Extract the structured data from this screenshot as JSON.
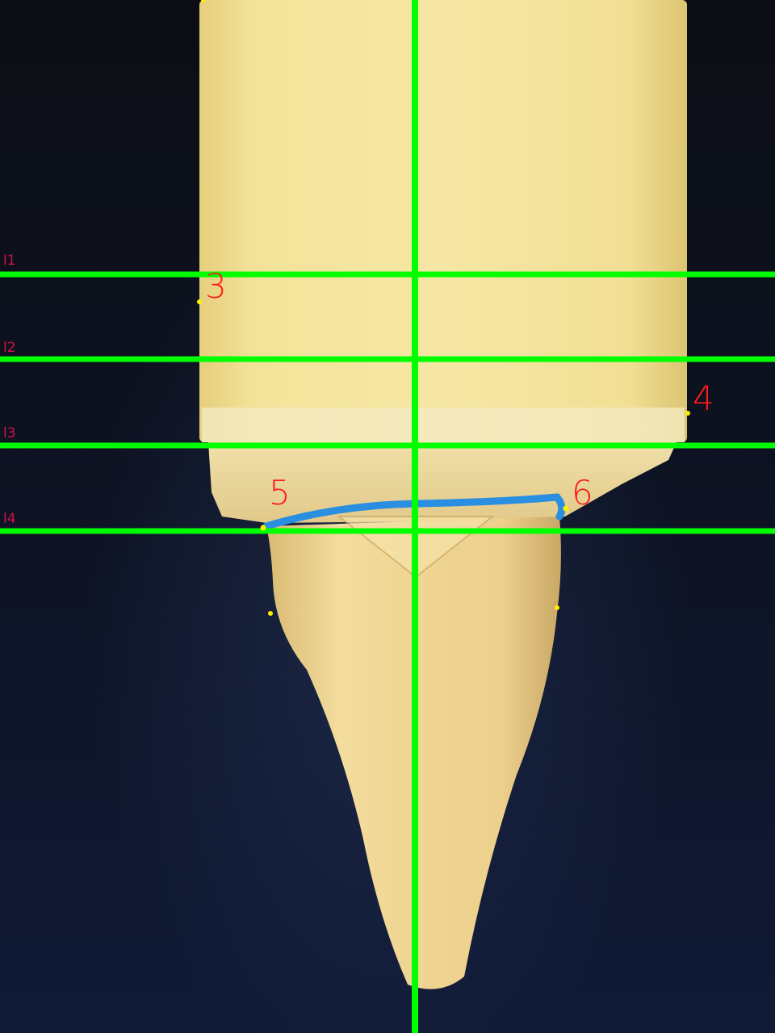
{
  "reference_lines": [
    {
      "label": "l1"
    },
    {
      "label": "l2"
    },
    {
      "label": "l3"
    },
    {
      "label": "l4"
    }
  ],
  "landmarks": [
    {
      "label": "3"
    },
    {
      "label": "4"
    },
    {
      "label": "5"
    },
    {
      "label": "6"
    }
  ],
  "colors": {
    "guide_line": "#00ff00",
    "landmark_label": "#ff1a1a",
    "line_label": "#d0104a",
    "landmark_dot": "#ffee00",
    "margin_outline": "#2a8fe0",
    "wax_block": "#f0dc8c",
    "tooth": "#f1d796",
    "background": "#0d1220"
  }
}
